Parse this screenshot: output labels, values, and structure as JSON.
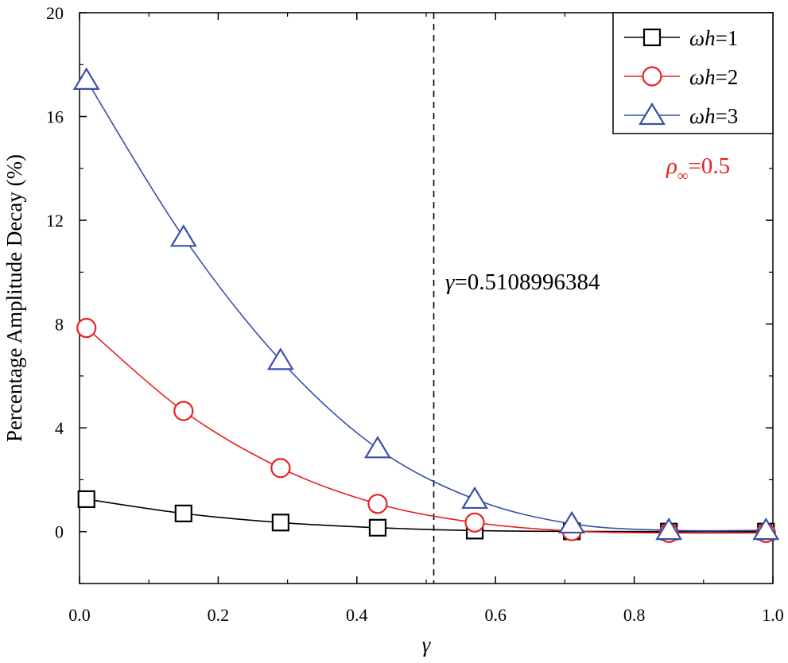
{
  "chart_data": {
    "type": "line",
    "xlabel": "γ",
    "ylabel": "Percentage Amplitude Decay (%)",
    "xlim": [
      0.0,
      1.0
    ],
    "ylim": [
      -2,
      20
    ],
    "x_ticks": [
      0.0,
      0.2,
      0.4,
      0.6,
      0.8,
      1.0
    ],
    "x_tick_labels": [
      "0.0",
      "0.2",
      "0.4",
      "0.6",
      "0.8",
      "1.0"
    ],
    "y_ticks": [
      0,
      4,
      8,
      12,
      16,
      20
    ],
    "y_tick_labels": [
      "0",
      "4",
      "8",
      "12",
      "16",
      "20"
    ],
    "grid": false,
    "legend_position": "top-right",
    "x": [
      0.01,
      0.15,
      0.29,
      0.43,
      0.57,
      0.71,
      0.85,
      0.99
    ],
    "series": [
      {
        "name": "ωh=1",
        "legend_italic": "ωh",
        "legend_value": "=1",
        "marker": "square",
        "color": "#000000",
        "values": [
          1.25,
          0.7,
          0.35,
          0.15,
          0.04,
          0.01,
          0.0,
          0.0
        ]
      },
      {
        "name": "ωh=2",
        "legend_italic": "ωh",
        "legend_value": "=2",
        "marker": "circle",
        "color": "#e8221f",
        "values": [
          7.85,
          4.65,
          2.45,
          1.07,
          0.35,
          0.02,
          -0.05,
          -0.05
        ]
      },
      {
        "name": "ωh=3",
        "legend_italic": "ωh",
        "legend_value": "=3",
        "marker": "triangle",
        "color": "#3a4fa8",
        "values": [
          17.4,
          11.35,
          6.6,
          3.2,
          1.25,
          0.3,
          0.05,
          0.05
        ]
      }
    ],
    "vline": {
      "x": 0.5108996384,
      "style": "dashed",
      "label_symbol": "γ",
      "label_value": "=0.5108996384"
    },
    "annotation": {
      "symbol": "ρ",
      "subscript": "∞",
      "value": "=0.5",
      "color": "#e8221f"
    }
  }
}
